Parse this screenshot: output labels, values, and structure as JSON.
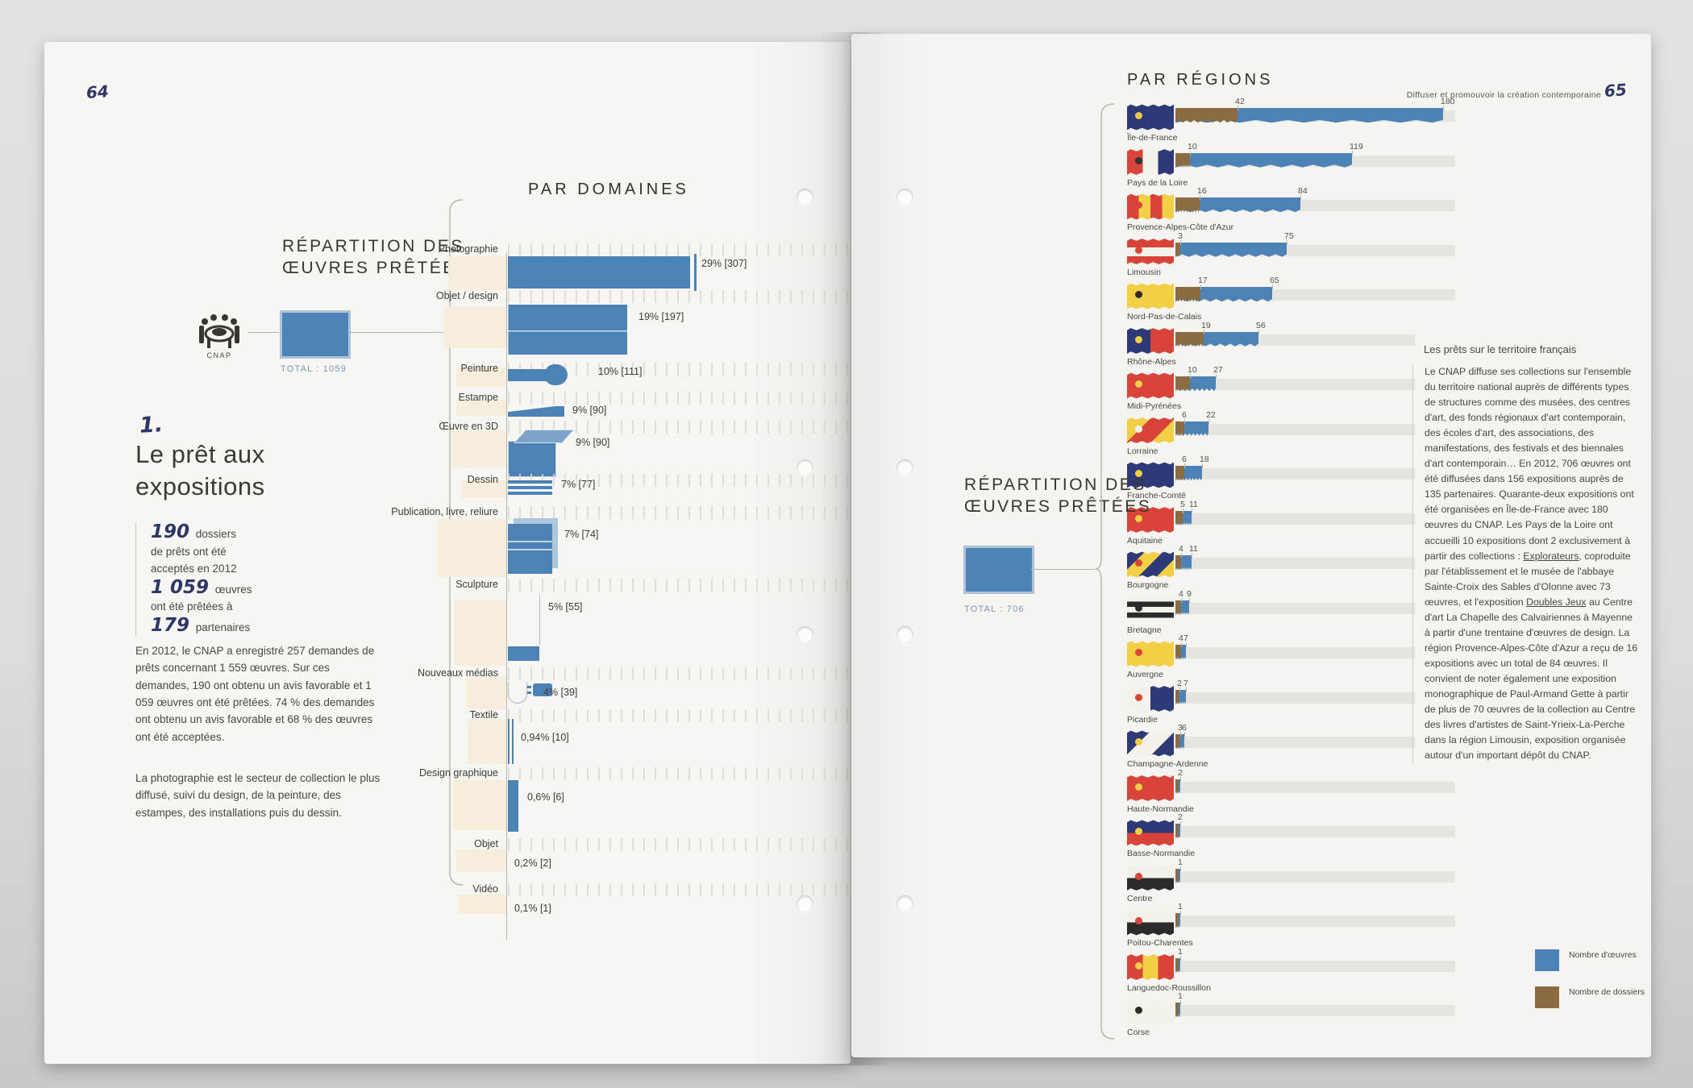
{
  "colors": {
    "works_blue": "#4d82b6",
    "dossiers_brown": "#8a6b42",
    "paper": "#f6f5f2",
    "handwritten_navy": "#2f3766",
    "beige_icon": "#f5eedc"
  },
  "page_left": {
    "page_number": "64",
    "diagram": {
      "heading": "Répartition des œuvres prêtées",
      "source_label": "CNAP",
      "total_label": "TOTAL : 1059"
    },
    "section_number": "1.",
    "section_title": "Le prêt aux expositions",
    "stats": [
      {
        "num": "190",
        "text": "dossiers"
      },
      {
        "text": "de prêts ont été"
      },
      {
        "text": "acceptés en 2012"
      },
      {
        "num": "1 059",
        "text": "œuvres"
      },
      {
        "text": "ont été prêtées à"
      },
      {
        "num": "179",
        "text": "partenaires"
      }
    ],
    "paragraphs": [
      "En 2012, le CNAP a enregistré 257 demandes de prêts concernant 1 559 œuvres. Sur ces demandes, 190 ont obtenu un avis favorable et 1 059 œuvres ont été prêtées. 74 % des demandes ont obtenu un avis favorable et 68 % des œuvres ont été acceptées.",
      "La photographie est le secteur de collection le plus diffusé, suivi du design, de la peinture, des estampes, des installations puis du dessin."
    ]
  },
  "page_right": {
    "header": "Par régions",
    "running_head": "Diffuser et promouvoir la création contemporaine",
    "page_number": "65",
    "diagram": {
      "heading": "Répartition des œuvres prêtées",
      "total_label": "TOTAL : 706"
    },
    "text_block": {
      "title": "Les prêts sur le territoire français",
      "segments": [
        {
          "t": "Le CNAP diffuse ses collections sur l'ensemble du territoire national auprès de différents types de structures comme des musées, des centres d'art, des fonds régionaux d'art contemporain, des écoles d'art, des associations, des manifestations, des festivals et des biennales d'art contemporain… En 2012, 706 œuvres ont été diffusées dans 156 expositions auprès de 135 partenaires. Quarante-deux expositions ont été organisées en Île-de-France avec 180 œuvres du CNAP. Les Pays de la Loire ont accueilli 10 expositions dont 2 exclusivement à partir des collections : "
        },
        {
          "t": "Explorateurs",
          "u": true
        },
        {
          "t": ", coproduite par l'établissement et le musée de l'abbaye Sainte-Croix des Sables d'Olonne avec 73 œuvres, et l'exposition "
        },
        {
          "t": "Doubles Jeux",
          "u": true
        },
        {
          "t": " au Centre d'art La Chapelle des Calvairiennes à Mayenne à partir d'une trentaine d'œuvres de design. La région Provence-Alpes-Côte d'Azur a reçu de 16 expositions avec un total de 84 œuvres. Il convient de noter également une exposition monographique de Paul-Armand Gette à partir de plus de 70 œuvres de la collection au Centre des livres d'artistes de Saint-Yrieix-La-Perche dans la région Limousin, exposition organisée autour d'un important dépôt du CNAP."
        }
      ]
    },
    "legend": [
      {
        "color": "#4d82b6",
        "label": "Nombre d'œuvres"
      },
      {
        "color": "#8a6b42",
        "label": "Nombre de dossiers"
      }
    ]
  },
  "chart_data": [
    {
      "type": "bar",
      "title": "PAR DOMAINES",
      "orientation": "horizontal",
      "total": 1059,
      "categories": [
        "Photographie",
        "Objet / design",
        "Peinture",
        "Estampe",
        "Œuvre en 3D",
        "Dessin",
        "Publication, livre, reliure",
        "Sculpture",
        "Nouveaux médias",
        "Textile",
        "Design graphique",
        "Objet",
        "Vidéo"
      ],
      "values_percent": [
        29,
        19,
        10,
        9,
        9,
        7,
        7,
        5,
        4,
        0.94,
        0.6,
        0.2,
        0.1
      ],
      "values_count": [
        307,
        197,
        111,
        90,
        90,
        77,
        74,
        55,
        39,
        10,
        6,
        2,
        1
      ],
      "value_labels": [
        "29% [307]",
        "19% [197]",
        "10% [111]",
        "9% [90]",
        "9% [90]",
        "7% [77]",
        "7% [74]",
        "5% [55]",
        "4% [39]",
        "0,94% [10]",
        "0,6% [6]",
        "0,2% [2]",
        "0,1% [1]"
      ],
      "icons": [
        "camera-bar",
        "furniture-bar",
        "paintbrush-bar",
        "press-bar",
        "cube-3d-bar",
        "pencil-bar",
        "book-bar",
        "plinth-bar",
        "plug-bar",
        "thread-bar",
        "poster-bar",
        "tiny-bar",
        "tiny-bar"
      ]
    },
    {
      "type": "bar",
      "title": "PAR RÉGIONS",
      "orientation": "horizontal",
      "total_oeuvres": 706,
      "series_names": [
        "Nombre de dossiers",
        "Nombre d'œuvres"
      ],
      "xmax": 180,
      "regions": [
        {
          "name": "Île-de-France",
          "dossiers": 42,
          "oeuvres": 180,
          "flag": {
            "dir": "h",
            "colors": [
              "#2e3a78"
            ],
            "emblem": "#e8c84a"
          }
        },
        {
          "name": "Pays de la Loire",
          "dossiers": 10,
          "oeuvres": 119,
          "flag": {
            "dir": "v",
            "colors": [
              "#d8433a",
              "#f4f1ea",
              "#2e3a78"
            ],
            "emblem": "#333333"
          }
        },
        {
          "name": "Provence-Alpes-Côte d'Azur",
          "dossiers": 16,
          "oeuvres": 84,
          "flag": {
            "dir": "v",
            "colors": [
              "#d8433a",
              "#f2cf45",
              "#d8433a",
              "#f2cf45"
            ],
            "emblem": "#d8433a"
          }
        },
        {
          "name": "Limousin",
          "dossiers": 3,
          "oeuvres": 75,
          "flag": {
            "dir": "h",
            "colors": [
              "#d8433a",
              "#f4f1ea",
              "#d8433a"
            ],
            "emblem": "#d8433a"
          }
        },
        {
          "name": "Nord-Pas-de-Calais",
          "dossiers": 17,
          "oeuvres": 65,
          "flag": {
            "dir": "h",
            "colors": [
              "#f2cf45"
            ],
            "emblem": "#2b2b2b"
          }
        },
        {
          "name": "Rhône-Alpes",
          "dossiers": 19,
          "oeuvres": 56,
          "flag": {
            "dir": "v",
            "colors": [
              "#2e3a78",
              "#d8433a"
            ],
            "emblem": "#f2cf45"
          }
        },
        {
          "name": "Midi-Pyrénées",
          "dossiers": 10,
          "oeuvres": 27,
          "flag": {
            "dir": "h",
            "colors": [
              "#d8433a"
            ],
            "emblem": "#f2cf45"
          }
        },
        {
          "name": "Lorraine",
          "dossiers": 6,
          "oeuvres": 22,
          "flag": {
            "dir": "d",
            "colors": [
              "#f2cf45",
              "#d8433a",
              "#f2cf45"
            ],
            "emblem": "#f4f1ea"
          }
        },
        {
          "name": "Franche-Comté",
          "dossiers": 6,
          "oeuvres": 18,
          "flag": {
            "dir": "h",
            "colors": [
              "#2e3a78"
            ],
            "emblem": "#f2cf45"
          }
        },
        {
          "name": "Aquitaine",
          "dossiers": 5,
          "oeuvres": 11,
          "flag": {
            "dir": "h",
            "colors": [
              "#d8433a"
            ],
            "emblem": "#f2cf45"
          }
        },
        {
          "name": "Bourgogne",
          "dossiers": 4,
          "oeuvres": 11,
          "flag": {
            "dir": "d",
            "colors": [
              "#2e3a78",
              "#f2cf45",
              "#2e3a78",
              "#f2cf45"
            ],
            "emblem": "#d8433a"
          }
        },
        {
          "name": "Bretagne",
          "dossiers": 4,
          "oeuvres": 9,
          "flag": {
            "dir": "h",
            "colors": [
              "#f4f1ea",
              "#2b2b2b",
              "#f4f1ea",
              "#2b2b2b",
              "#f4f1ea"
            ],
            "emblem": "#2b2b2b"
          }
        },
        {
          "name": "Auvergne",
          "dossiers": 4,
          "oeuvres": 7,
          "flag": {
            "dir": "h",
            "colors": [
              "#f2cf45"
            ],
            "emblem": "#d8433a"
          }
        },
        {
          "name": "Picardie",
          "dossiers": 2,
          "oeuvres": 7,
          "flag": {
            "dir": "v",
            "colors": [
              "#f4f1ea",
              "#2e3a78"
            ],
            "emblem": "#d8433a"
          }
        },
        {
          "name": "Champagne-Ardenne",
          "dossiers": 3,
          "oeuvres": 6,
          "flag": {
            "dir": "d",
            "colors": [
              "#2e3a78",
              "#f4f1ea",
              "#2e3a78"
            ],
            "emblem": "#f2cf45"
          }
        },
        {
          "name": "Haute-Normandie",
          "dossiers": null,
          "oeuvres": 2,
          "flag": {
            "dir": "h",
            "colors": [
              "#d8433a"
            ],
            "emblem": "#f2cf45"
          }
        },
        {
          "name": "Basse-Normandie",
          "dossiers": null,
          "oeuvres": 2,
          "flag": {
            "dir": "h",
            "colors": [
              "#2e3a78",
              "#d8433a"
            ],
            "emblem": "#f2cf45"
          }
        },
        {
          "name": "Centre",
          "dossiers": null,
          "oeuvres": 1,
          "flag": {
            "dir": "h",
            "colors": [
              "#f4f1ea",
              "#2b2b2b"
            ],
            "emblem": "#d8433a"
          }
        },
        {
          "name": "Poitou-Charentes",
          "dossiers": null,
          "oeuvres": 1,
          "flag": {
            "dir": "h",
            "colors": [
              "#f4f1ea",
              "#2b2b2b"
            ],
            "emblem": "#d8433a"
          }
        },
        {
          "name": "Languedoc-Roussillon",
          "dossiers": null,
          "oeuvres": 1,
          "flag": {
            "dir": "v",
            "colors": [
              "#d8433a",
              "#f2cf45",
              "#d8433a"
            ],
            "emblem": "#f2cf45"
          }
        },
        {
          "name": "Corse",
          "dossiers": null,
          "oeuvres": 1,
          "flag": {
            "dir": "h",
            "colors": [
              "#f4f1ea"
            ],
            "emblem": "#2b2b2b"
          }
        }
      ]
    }
  ]
}
